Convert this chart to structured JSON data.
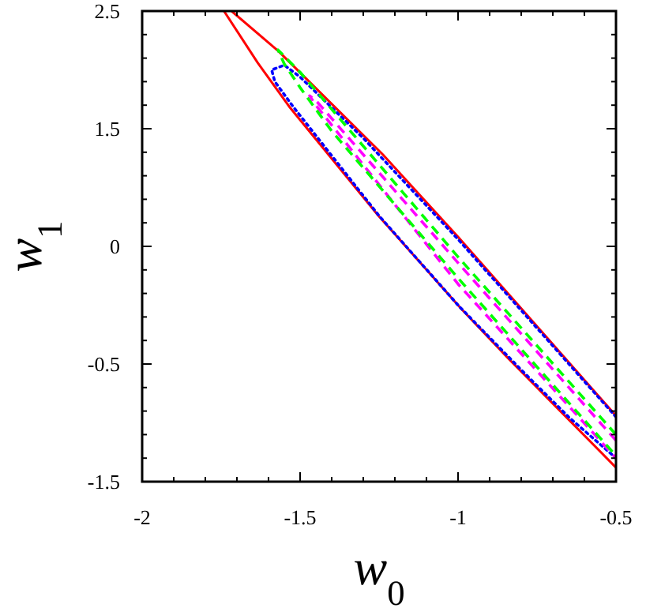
{
  "chart_data": {
    "type": "line",
    "xlabel": "w$_{0}$",
    "ylabel": "w$_{1}$",
    "xlim": [
      -2,
      -0.5
    ],
    "ylim": [
      -1.5,
      2.5
    ],
    "xticks": [
      -2,
      {
        "value": -1.9,
        "label": null
      },
      {
        "value": -1.8,
        "label": null
      },
      {
        "value": -1.7,
        "label": null
      },
      {
        "value": -1.6,
        "label": null
      },
      -1.5,
      {
        "value": -1.4,
        "label": null
      },
      {
        "value": -1.3,
        "label": null
      },
      {
        "value": -1.2,
        "label": null
      },
      {
        "value": -1.1,
        "label": null
      },
      -1,
      {
        "value": -0.9,
        "label": null
      },
      {
        "value": -0.8,
        "label": null
      },
      {
        "value": -0.7,
        "label": null
      },
      {
        "value": -0.6,
        "label": null
      },
      -0.5
    ],
    "yticks": [
      -1.5,
      {
        "value": -1.3,
        "label": null
      },
      {
        "value": -1.1,
        "label": null
      },
      {
        "value": -0.9,
        "label": null
      },
      {
        "value": -0.7,
        "label": null
      },
      -0.5,
      {
        "value": -0.3,
        "label": null
      },
      {
        "value": -0.1,
        "label": null
      },
      {
        "value": 0.1,
        "label": null
      },
      {
        "value": 0.3,
        "label": null
      },
      {
        "value": 0.5,
        "label": "0"
      },
      {
        "value": 0.7,
        "label": null
      },
      {
        "value": 0.9,
        "label": null
      },
      {
        "value": 1.1,
        "label": null
      },
      {
        "value": 1.3,
        "label": null
      },
      1.5,
      {
        "value": 1.7,
        "label": null
      },
      {
        "value": 1.9,
        "label": null
      },
      {
        "value": 2.1,
        "label": null
      },
      {
        "value": 2.3,
        "label": null
      },
      2.5
    ],
    "series": [
      {
        "color": "#ff0000",
        "line_style": "solid",
        "x": [
          -0.5,
          -1.0,
          -1.238,
          -1.569,
          -1.717,
          null,
          -1.741,
          -1.634,
          -1.535,
          -1.252,
          -0.99,
          -0.842,
          -0.5
        ],
        "values": [
          -0.94,
          0.58,
          1.28,
          2.16,
          2.5,
          null,
          2.5,
          2.06,
          1.69,
          0.76,
          -0.03,
          -0.45,
          -1.38
        ]
      },
      {
        "color": "#0000ff",
        "line_style": "dotted",
        "x": [
          -0.5,
          -1.0,
          -1.3,
          -1.5,
          -1.55,
          -1.59,
          -1.58,
          -1.52,
          -1.25,
          -1.0,
          -0.8,
          -0.65,
          -0.5
        ],
        "values": [
          -0.95,
          0.56,
          1.42,
          1.94,
          2.04,
          2.0,
          1.9,
          1.68,
          0.76,
          0.0,
          -0.55,
          -0.95,
          -1.3
        ]
      },
      {
        "color": "#ff00ff",
        "line_style": "dashed",
        "x": [
          -0.5,
          -1.0,
          -1.45,
          -1.47,
          -1.45,
          -1.0,
          -0.5
        ],
        "values": [
          -1.15,
          0.36,
          1.74,
          1.78,
          1.7,
          0.18,
          -1.3
        ]
      },
      {
        "color": "#00ff00",
        "line_style": "dashed",
        "x": [
          -0.5,
          -1.0,
          -1.5,
          -1.57,
          -1.55,
          -1.5,
          -1.4,
          -1.0,
          -0.5
        ],
        "values": [
          -1.1,
          0.41,
          1.98,
          2.17,
          2.05,
          1.85,
          1.48,
          0.23,
          -1.28
        ]
      }
    ]
  }
}
